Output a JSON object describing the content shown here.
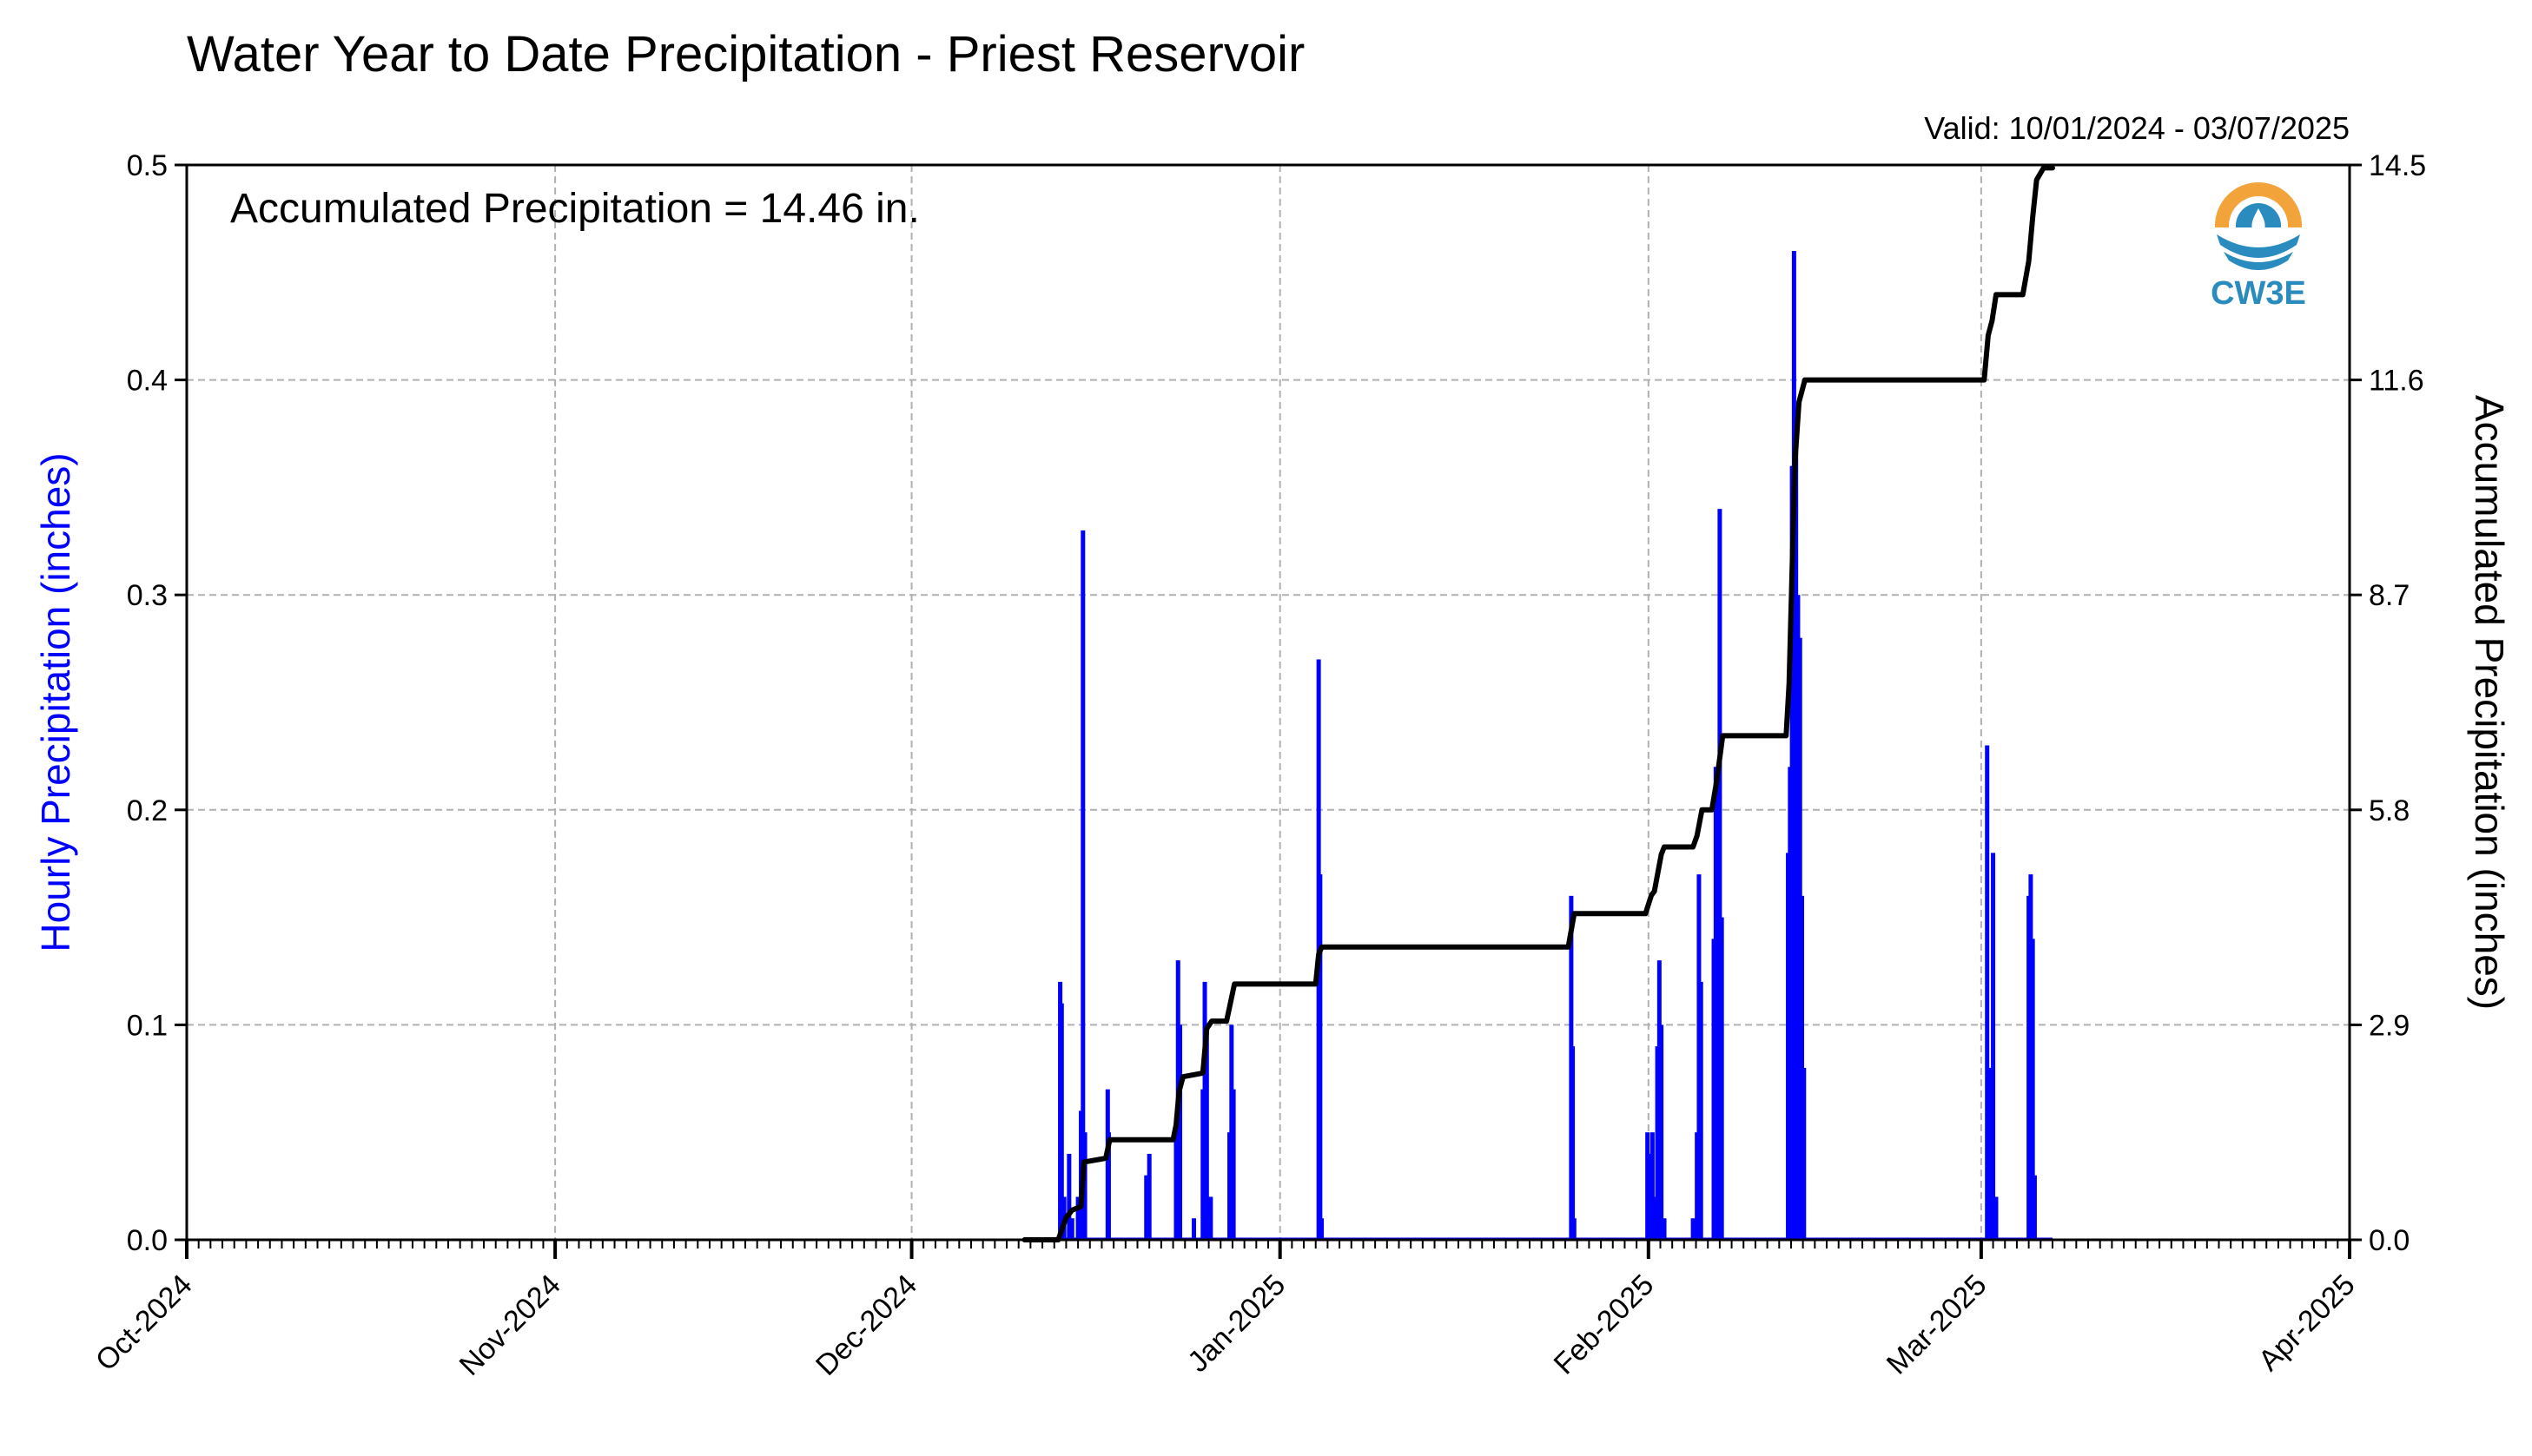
{
  "header": {
    "title": "Water Year to Date Precipitation - Priest Reservoir",
    "valid": "Valid: 10/01/2024 - 03/07/2025"
  },
  "annotation": "Accumulated Precipitation = 14.46 in.",
  "logo": {
    "text": "CW3E",
    "icon": "cw3e-logo-icon"
  },
  "colors": {
    "hourly": "#0000ff",
    "accum": "#000000",
    "grid": "#b0b0b0",
    "logo_orange": "#f2a33a",
    "logo_blue": "#2a8bbf"
  },
  "chart_data": {
    "type": "bar",
    "title": "Water Year to Date Precipitation - Priest Reservoir",
    "ylabel": "Hourly Precipitation (inches)",
    "ylabel_right": "Accumulated Precipitation (inches)",
    "xlim": [
      "2024-10-01",
      "2025-04-01"
    ],
    "ylim": [
      0,
      0.5
    ],
    "ylim_right": [
      0,
      14.5
    ],
    "grid": true,
    "x_ticks": [
      "Oct-2024",
      "Nov-2024",
      "Dec-2024",
      "Jan-2025",
      "Feb-2025",
      "Mar-2025",
      "Apr-2025"
    ],
    "y_ticks": [
      "0.0",
      "0.1",
      "0.2",
      "0.3",
      "0.4",
      "0.5"
    ],
    "y_ticks_right": [
      "0.0",
      "2.9",
      "5.8",
      "8.7",
      "11.6",
      "14.5"
    ],
    "series": [
      {
        "name": "Hourly Precipitation (inches)",
        "type": "bar",
        "points": [
          [
            "2024-12-13T12",
            0.12
          ],
          [
            "2024-12-13T15",
            0.11
          ],
          [
            "2024-12-13T20",
            0.02
          ],
          [
            "2024-12-14T06",
            0.04
          ],
          [
            "2024-12-14T12",
            0.01
          ],
          [
            "2024-12-15T00",
            0.02
          ],
          [
            "2024-12-15T06",
            0.06
          ],
          [
            "2024-12-15T10",
            0.33
          ],
          [
            "2024-12-15T14",
            0.05
          ],
          [
            "2024-12-17T12",
            0.07
          ],
          [
            "2024-12-17T14",
            0.05
          ],
          [
            "2024-12-20T18",
            0.03
          ],
          [
            "2024-12-21T00",
            0.04
          ],
          [
            "2024-12-23T06",
            0.05
          ],
          [
            "2024-12-23T10",
            0.13
          ],
          [
            "2024-12-23T14",
            0.1
          ],
          [
            "2024-12-24T18",
            0.01
          ],
          [
            "2024-12-25T12",
            0.07
          ],
          [
            "2024-12-25T16",
            0.12
          ],
          [
            "2024-12-25T20",
            0.1
          ],
          [
            "2024-12-26T04",
            0.02
          ],
          [
            "2024-12-27T18",
            0.05
          ],
          [
            "2024-12-27T22",
            0.1
          ],
          [
            "2024-12-28T02",
            0.07
          ],
          [
            "2025-01-04T06",
            0.27
          ],
          [
            "2025-01-04T09",
            0.17
          ],
          [
            "2025-01-04T12",
            0.01
          ],
          [
            "2025-01-25T12",
            0.16
          ],
          [
            "2025-01-25T15",
            0.09
          ],
          [
            "2025-01-25T18",
            0.01
          ],
          [
            "2025-01-31T22",
            0.05
          ],
          [
            "2025-02-01T02",
            0.04
          ],
          [
            "2025-02-01T08",
            0.05
          ],
          [
            "2025-02-01T12",
            0.02
          ],
          [
            "2025-02-01T18",
            0.09
          ],
          [
            "2025-02-01T22",
            0.13
          ],
          [
            "2025-02-02T02",
            0.1
          ],
          [
            "2025-02-02T08",
            0.01
          ],
          [
            "2025-02-04T18",
            0.01
          ],
          [
            "2025-02-05T02",
            0.05
          ],
          [
            "2025-02-05T06",
            0.17
          ],
          [
            "2025-02-05T10",
            0.12
          ],
          [
            "2025-02-06T12",
            0.14
          ],
          [
            "2025-02-06T16",
            0.22
          ],
          [
            "2025-02-06T20",
            0.21
          ],
          [
            "2025-02-07T00",
            0.34
          ],
          [
            "2025-02-07T04",
            0.15
          ],
          [
            "2025-02-12T18",
            0.18
          ],
          [
            "2025-02-12T22",
            0.22
          ],
          [
            "2025-02-13T02",
            0.36
          ],
          [
            "2025-02-13T06",
            0.46
          ],
          [
            "2025-02-13T10",
            0.38
          ],
          [
            "2025-02-13T14",
            0.3
          ],
          [
            "2025-02-13T18",
            0.28
          ],
          [
            "2025-02-13T22",
            0.16
          ],
          [
            "2025-02-14T02",
            0.08
          ],
          [
            "2025-03-01T12",
            0.23
          ],
          [
            "2025-03-01T16",
            0.08
          ],
          [
            "2025-03-01T20",
            0.05
          ],
          [
            "2025-03-02T00",
            0.18
          ],
          [
            "2025-03-02T06",
            0.02
          ],
          [
            "2025-03-05T00",
            0.16
          ],
          [
            "2025-03-05T04",
            0.17
          ],
          [
            "2025-03-05T08",
            0.14
          ],
          [
            "2025-03-05T12",
            0.03
          ]
        ]
      },
      {
        "name": "Accumulated Precipitation (inches)",
        "type": "line",
        "axis": "right",
        "points": [
          [
            "2024-12-10T12",
            0.0
          ],
          [
            "2024-12-13T08",
            0.0
          ],
          [
            "2024-12-14T00",
            0.3
          ],
          [
            "2024-12-14T12",
            0.4
          ],
          [
            "2024-12-15T06",
            0.45
          ],
          [
            "2024-12-15T12",
            1.05
          ],
          [
            "2024-12-17T08",
            1.1
          ],
          [
            "2024-12-17T16",
            1.35
          ],
          [
            "2024-12-23T00",
            1.35
          ],
          [
            "2024-12-23T06",
            1.55
          ],
          [
            "2024-12-23T12",
            2.0
          ],
          [
            "2024-12-23T20",
            2.2
          ],
          [
            "2024-12-25T12",
            2.25
          ],
          [
            "2024-12-25T20",
            2.85
          ],
          [
            "2024-12-26T06",
            2.95
          ],
          [
            "2024-12-27T12",
            2.95
          ],
          [
            "2024-12-28T04",
            3.45
          ],
          [
            "2025-01-04T00",
            3.45
          ],
          [
            "2025-01-04T06",
            3.85
          ],
          [
            "2025-01-04T12",
            3.95
          ],
          [
            "2025-01-25T06",
            3.95
          ],
          [
            "2025-01-25T18",
            4.4
          ],
          [
            "2025-01-31T18",
            4.4
          ],
          [
            "2025-02-01T06",
            4.65
          ],
          [
            "2025-02-01T12",
            4.7
          ],
          [
            "2025-02-02T02",
            5.2
          ],
          [
            "2025-02-02T08",
            5.3
          ],
          [
            "2025-02-04T18",
            5.3
          ],
          [
            "2025-02-05T02",
            5.45
          ],
          [
            "2025-02-05T12",
            5.8
          ],
          [
            "2025-02-06T08",
            5.8
          ],
          [
            "2025-02-06T18",
            6.2
          ],
          [
            "2025-02-07T06",
            6.8
          ],
          [
            "2025-02-12T14",
            6.8
          ],
          [
            "2025-02-12T20",
            7.5
          ],
          [
            "2025-02-13T02",
            9.0
          ],
          [
            "2025-02-13T08",
            10.5
          ],
          [
            "2025-02-13T16",
            11.3
          ],
          [
            "2025-02-14T04",
            11.6
          ],
          [
            "2025-03-01T06",
            11.6
          ],
          [
            "2025-03-01T14",
            12.2
          ],
          [
            "2025-03-01T22",
            12.4
          ],
          [
            "2025-03-02T06",
            12.75
          ],
          [
            "2025-03-04T12",
            12.75
          ],
          [
            "2025-03-05T00",
            13.2
          ],
          [
            "2025-03-05T08",
            13.8
          ],
          [
            "2025-03-05T16",
            14.3
          ],
          [
            "2025-03-06T06",
            14.46
          ],
          [
            "2025-03-07T00",
            14.46
          ]
        ]
      }
    ]
  }
}
